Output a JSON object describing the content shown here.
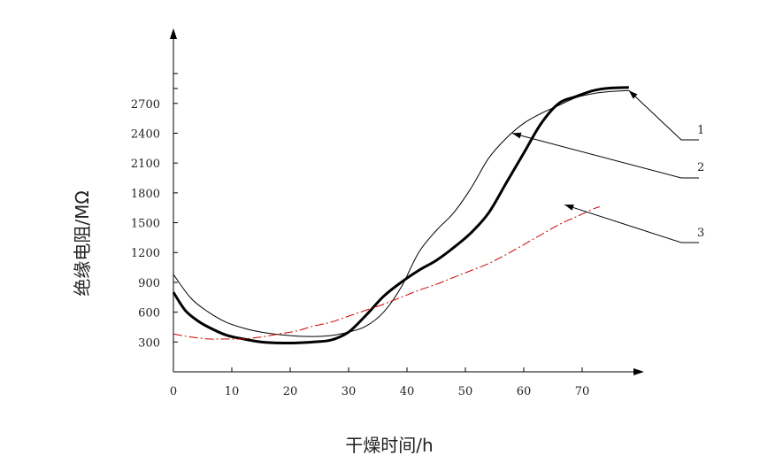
{
  "chart_data": {
    "type": "line",
    "title": "",
    "xlabel": "干燥时间/h",
    "ylabel": "绝缘电阻/MΩ",
    "xlim": [
      0,
      80
    ],
    "ylim": [
      0,
      3000
    ],
    "x_ticks": [
      0,
      10,
      20,
      30,
      40,
      50,
      60,
      70
    ],
    "y_ticks": [
      300,
      600,
      900,
      1200,
      1500,
      1800,
      2100,
      2400,
      2700
    ],
    "grid": false,
    "legend": "none",
    "series": [
      {
        "name": "1",
        "color": "#000000",
        "style": "thin",
        "x": [
          0,
          3,
          6,
          9,
          12,
          15,
          18,
          21,
          24,
          27,
          30,
          33,
          36,
          39,
          42,
          45,
          48,
          51,
          54,
          57,
          60,
          63,
          66,
          69,
          72,
          75,
          78
        ],
        "y": [
          980,
          740,
          600,
          500,
          440,
          400,
          375,
          360,
          355,
          365,
          400,
          460,
          600,
          850,
          1200,
          1420,
          1600,
          1850,
          2150,
          2350,
          2500,
          2600,
          2680,
          2760,
          2800,
          2820,
          2830
        ]
      },
      {
        "name": "2",
        "color": "#000000",
        "style": "thick",
        "x": [
          0,
          2,
          4,
          6,
          9,
          12,
          15,
          18,
          21,
          24,
          27,
          30,
          33,
          36,
          39,
          42,
          45,
          48,
          51,
          54,
          57,
          60,
          63,
          66,
          69,
          72,
          75,
          78
        ],
        "y": [
          800,
          620,
          520,
          450,
          370,
          330,
          300,
          290,
          290,
          300,
          320,
          400,
          570,
          760,
          900,
          1020,
          1120,
          1250,
          1400,
          1600,
          1900,
          2200,
          2500,
          2700,
          2770,
          2830,
          2855,
          2860
        ]
      },
      {
        "name": "3",
        "color": "#cc0000",
        "style": "dash-dot",
        "x": [
          0,
          3,
          6,
          9,
          12,
          15,
          18,
          21,
          24,
          27,
          30,
          33,
          36,
          39,
          42,
          45,
          48,
          51,
          54,
          57,
          60,
          63,
          66,
          69,
          72,
          73
        ],
        "y": [
          380,
          350,
          330,
          330,
          330,
          350,
          380,
          410,
          460,
          500,
          560,
          620,
          680,
          750,
          820,
          880,
          950,
          1020,
          1090,
          1180,
          1280,
          1380,
          1480,
          1560,
          1640,
          1660
        ]
      }
    ],
    "annotations": [
      {
        "label": "1",
        "x": 78,
        "y": 2830
      },
      {
        "label": "2",
        "x": 58,
        "y": 2400
      },
      {
        "label": "3",
        "x": 67,
        "y": 1680
      }
    ]
  }
}
